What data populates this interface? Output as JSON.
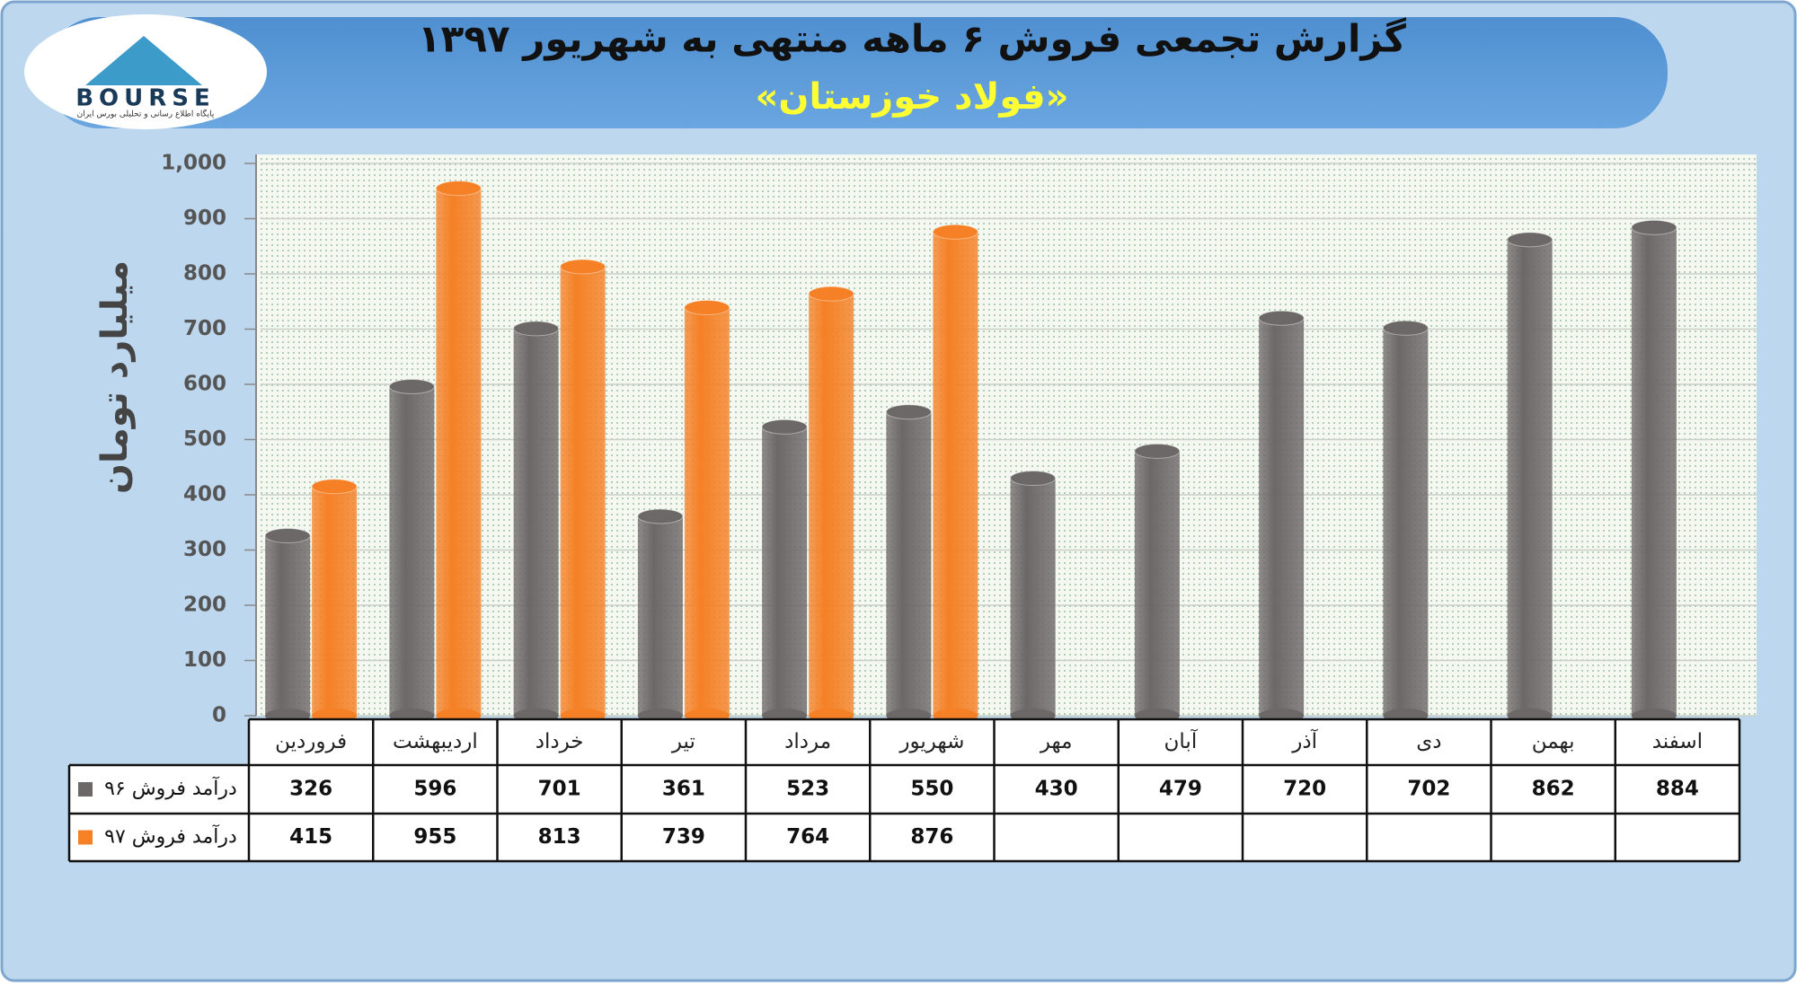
{
  "logo": {
    "text": "BOURSE",
    "tagline": "پایگاه اطلاع رسانی و تحلیلی بورس ایران"
  },
  "chart_data": {
    "type": "bar",
    "title": "گزارش تجمعی فروش ۶ ماهه منتهی به شهریور ۱۳۹۷",
    "subtitle": "«فولاد خوزستان»",
    "ylabel": "میلیارد تومان",
    "categories": [
      "فروردین",
      "اردیبهشت",
      "خرداد",
      "تیر",
      "مرداد",
      "شهریور",
      "مهر",
      "آبان",
      "آذر",
      "دی",
      "بهمن",
      "اسفند"
    ],
    "series": [
      {
        "name": "درآمد فروش ۹۶",
        "color": "#6d6868",
        "values": [
          326,
          596,
          701,
          361,
          523,
          550,
          430,
          479,
          720,
          702,
          862,
          884
        ]
      },
      {
        "name": "درآمد فروش ۹۷",
        "color": "#f58025",
        "values": [
          415,
          955,
          813,
          739,
          764,
          876,
          null,
          null,
          null,
          null,
          null,
          null
        ]
      }
    ],
    "ylim": [
      0,
      1000
    ],
    "yticks": [
      0,
      100,
      200,
      300,
      400,
      500,
      600,
      700,
      800,
      900,
      {
        "value": 1000,
        "label": "1,000"
      }
    ],
    "grid": true
  }
}
